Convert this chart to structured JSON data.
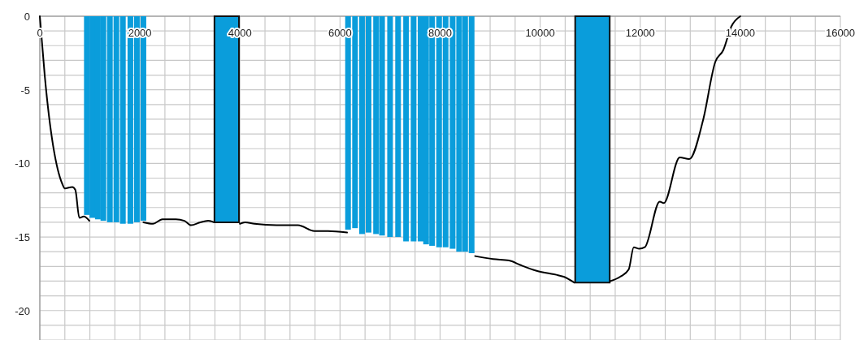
{
  "chart_data": {
    "type": "line",
    "xlim": [
      0,
      16000
    ],
    "ylim": [
      -22,
      0
    ],
    "xticks": [
      0,
      {
        "value": 500,
        "label": null
      },
      {
        "value": 1000,
        "label": null
      },
      {
        "value": 1500,
        "label": null
      },
      2000,
      {
        "value": 2500,
        "label": null
      },
      {
        "value": 3000,
        "label": null
      },
      {
        "value": 3500,
        "label": null
      },
      4000,
      {
        "value": 4500,
        "label": null
      },
      {
        "value": 5000,
        "label": null
      },
      {
        "value": 5500,
        "label": null
      },
      6000,
      {
        "value": 6500,
        "label": null
      },
      {
        "value": 7000,
        "label": null
      },
      {
        "value": 7500,
        "label": null
      },
      8000,
      {
        "value": 8500,
        "label": null
      },
      {
        "value": 9000,
        "label": null
      },
      {
        "value": 9500,
        "label": null
      },
      10000,
      {
        "value": 10500,
        "label": null
      },
      {
        "value": 11000,
        "label": null
      },
      {
        "value": 11500,
        "label": null
      },
      12000,
      {
        "value": 12500,
        "label": null
      },
      {
        "value": 13000,
        "label": null
      },
      {
        "value": 13500,
        "label": null
      },
      14000,
      {
        "value": 14500,
        "label": null
      },
      {
        "value": 15000,
        "label": null
      },
      {
        "value": 15500,
        "label": null
      },
      16000
    ],
    "yticks": [
      {
        "value": -22,
        "label": null
      },
      {
        "value": -21,
        "label": null
      },
      -20,
      {
        "value": -19,
        "label": null
      },
      {
        "value": -18,
        "label": null
      },
      {
        "value": -17,
        "label": null
      },
      {
        "value": -16,
        "label": null
      },
      -15,
      {
        "value": -14,
        "label": null
      },
      {
        "value": -13,
        "label": null
      },
      {
        "value": -12,
        "label": null
      },
      {
        "value": -11,
        "label": null
      },
      -10,
      {
        "value": -9,
        "label": null
      },
      {
        "value": -8,
        "label": null
      },
      {
        "value": -7,
        "label": null
      },
      {
        "value": -6,
        "label": null
      },
      -5,
      {
        "value": -4,
        "label": null
      },
      {
        "value": -3,
        "label": null
      },
      {
        "value": -2,
        "label": null
      },
      {
        "value": -1,
        "label": null
      },
      0
    ],
    "grid": true,
    "series": [
      {
        "type": "bar",
        "color": "#0a9ddb",
        "x": [
          940,
          1050,
          1160,
          1270,
          1400,
          1530,
          1660,
          1810,
          1940,
          2070,
          6160,
          6300,
          6440,
          6570,
          6720,
          6840,
          7000,
          7160,
          7320,
          7470,
          7610,
          7720,
          7840,
          7980,
          8110,
          8250,
          8380,
          8500,
          8630
        ],
        "values": [
          -13.5,
          -13.7,
          -13.8,
          -13.9,
          -14,
          -14,
          -14.1,
          -14.1,
          -14,
          -13.9,
          -14.5,
          -14.4,
          -14.8,
          -14.7,
          -14.8,
          -14.9,
          -15,
          -15,
          -15.3,
          -15.3,
          -15.3,
          -15.5,
          -15.6,
          -15.7,
          -15.7,
          -15.8,
          -16,
          -16,
          -16.1
        ]
      },
      {
        "type": "area",
        "color": "#0a9ddb",
        "x": [
          3490,
          3980
        ],
        "values": [
          -14,
          -14
        ]
      },
      {
        "type": "area",
        "color": "#0a9ddb",
        "x": [
          10700,
          11390
        ],
        "values": [
          -18.1,
          -18.1
        ]
      },
      {
        "color": "#000000",
        "x": [
          0,
          100,
          450,
          500,
          650,
          710,
          790,
          880,
          990,
          1000,
          2000,
          2070,
          2260,
          2450,
          2720,
          2890,
          3020,
          3210,
          3370,
          3480,
          3500,
          4000,
          4100,
          4290,
          4730,
          5160,
          5490,
          5760,
          6140,
          6200,
          8700,
          9060,
          9380,
          9600,
          9930,
          10360,
          10470,
          10680,
          10700,
          11400,
          11600,
          11770,
          11870,
          11980,
          12090,
          12390,
          12470,
          12790,
          12980,
          13260,
          13500,
          13660,
          13820,
          14000
        ],
        "values": [
          0,
          -4.1,
          -11.4,
          -11.7,
          -11.6,
          -11.8,
          -13.7,
          -13.6,
          -13.9,
          null,
          null,
          -14,
          -14.1,
          -13.8,
          -13.8,
          -13.9,
          -14.2,
          -14,
          -13.9,
          -14,
          null,
          -14.1,
          -14,
          -14.1,
          -14.2,
          -14.2,
          -14.6,
          -14.6,
          -14.7,
          null,
          -16.3,
          -16.5,
          -16.6,
          -16.9,
          -17.3,
          -17.6,
          -17.7,
          -18.1,
          null,
          -18,
          -17.7,
          -17.2,
          -15.7,
          -15.8,
          -15.7,
          -12.6,
          -12.7,
          -9.6,
          -9.7,
          -7,
          -3.1,
          -2.3,
          -0.7,
          0
        ]
      }
    ]
  }
}
